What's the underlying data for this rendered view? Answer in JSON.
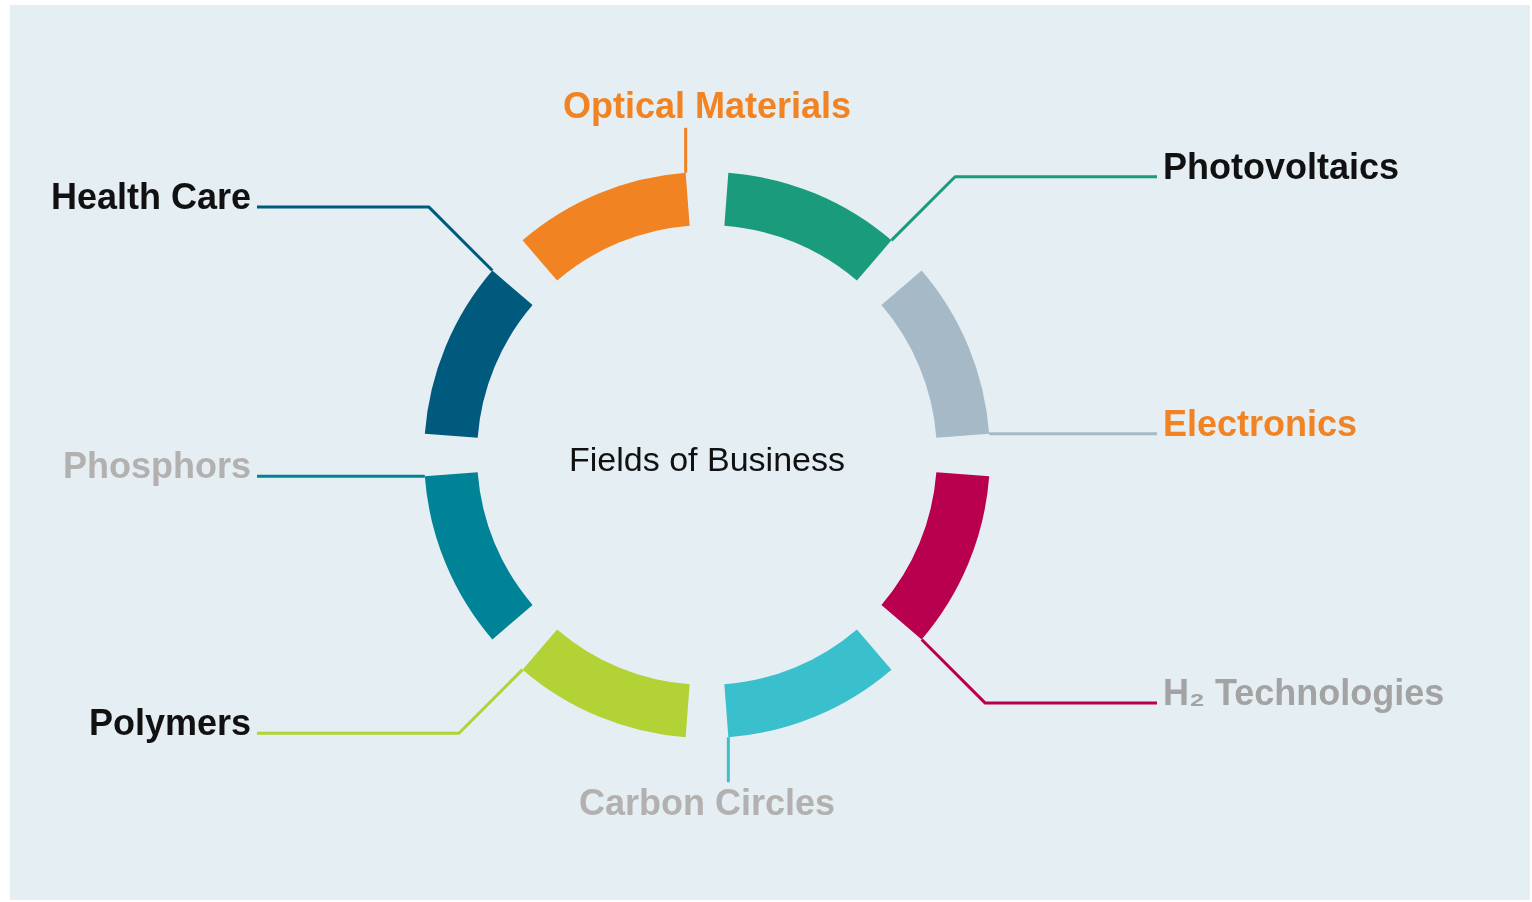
{
  "chart_data": {
    "type": "donut",
    "title": "Fields of Business",
    "categories": [
      "Photovoltaics",
      "Electronics",
      "H₂ Technologies",
      "Carbon Circles",
      "Polymers",
      "Phosphors",
      "Health Care",
      "Optical Materials"
    ],
    "values": [
      12.5,
      12.5,
      12.5,
      12.5,
      12.5,
      12.5,
      12.5,
      12.5
    ],
    "colors": [
      "#1a9b7b",
      "#a5b9c6",
      "#b9004f",
      "#3abfcc",
      "#b2d235",
      "#008396",
      "#005a7d",
      "#f28322"
    ]
  }
}
